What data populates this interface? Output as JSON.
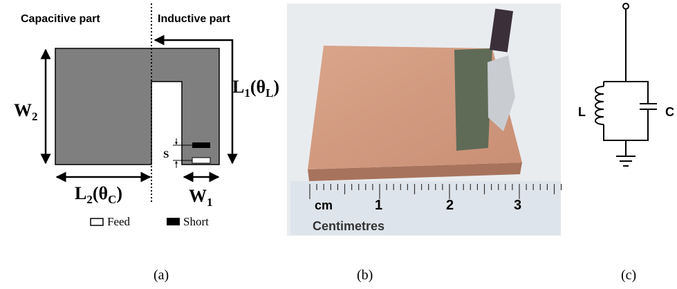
{
  "panel_a": {
    "left_title": "Capacitive part",
    "right_title": "Inductive part",
    "w2": [
      {
        "text": "W"
      },
      {
        "text": "2",
        "sub": true
      }
    ],
    "l1": [
      {
        "text": "L"
      },
      {
        "text": "1",
        "sub": true
      },
      {
        "text": "(θ"
      },
      {
        "text": "L",
        "sub": true
      },
      {
        "text": ")"
      }
    ],
    "l2": [
      {
        "text": "L"
      },
      {
        "text": "2",
        "sub": true
      },
      {
        "text": "(θ"
      },
      {
        "text": "C",
        "sub": true
      },
      {
        "text": ")"
      }
    ],
    "w1": [
      {
        "text": "W"
      },
      {
        "text": "1",
        "sub": true
      }
    ],
    "s": "S",
    "legend": {
      "feed": "Feed",
      "short": "Short"
    },
    "caption": "(a)"
  },
  "panel_b": {
    "ruler": {
      "unit": "cm",
      "marks": [
        "1",
        "2",
        "3"
      ],
      "name": "Centimetres"
    },
    "caption": "(b)"
  },
  "panel_c": {
    "inductor": "L",
    "capacitor": "C",
    "caption": "(c)"
  }
}
